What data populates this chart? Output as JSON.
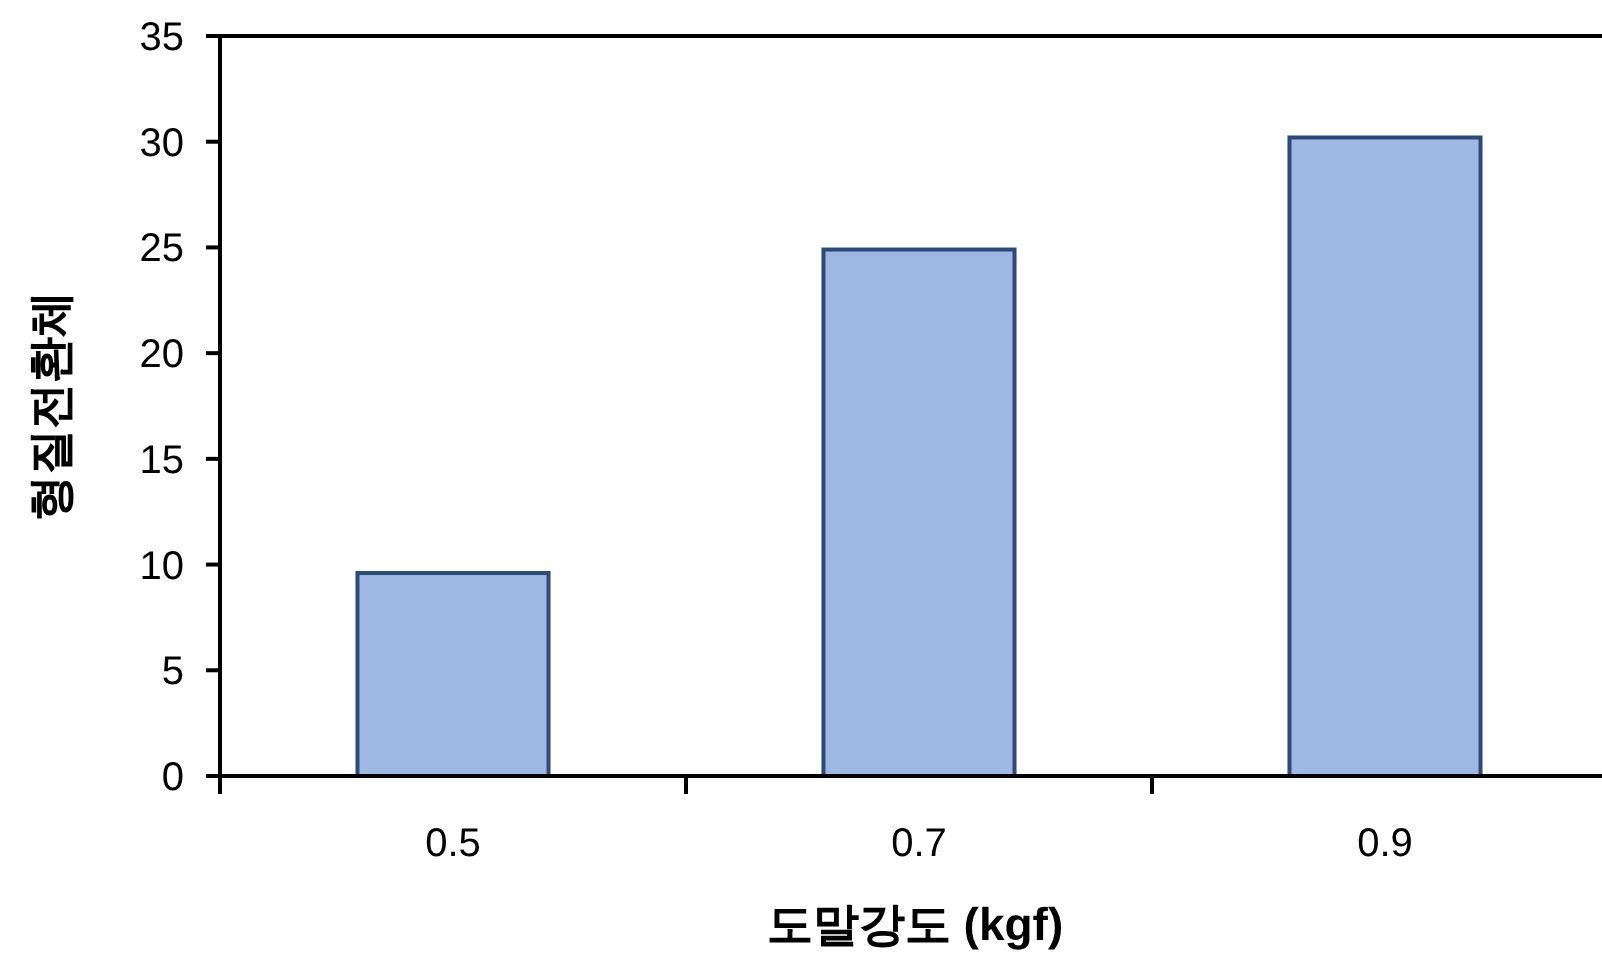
{
  "chart_data": {
    "type": "bar",
    "xlabel": "도말강도 (kgf)",
    "ylabel": "형질전환체",
    "categories": [
      "0.5",
      "0.7",
      "0.9"
    ],
    "values": [
      9.6,
      24.9,
      30.2
    ],
    "color": "#9db9e3",
    "ylim": [
      0,
      35
    ],
    "yticks": [
      0,
      5,
      10,
      15,
      20,
      25,
      30,
      35
    ],
    "grid": false
  }
}
